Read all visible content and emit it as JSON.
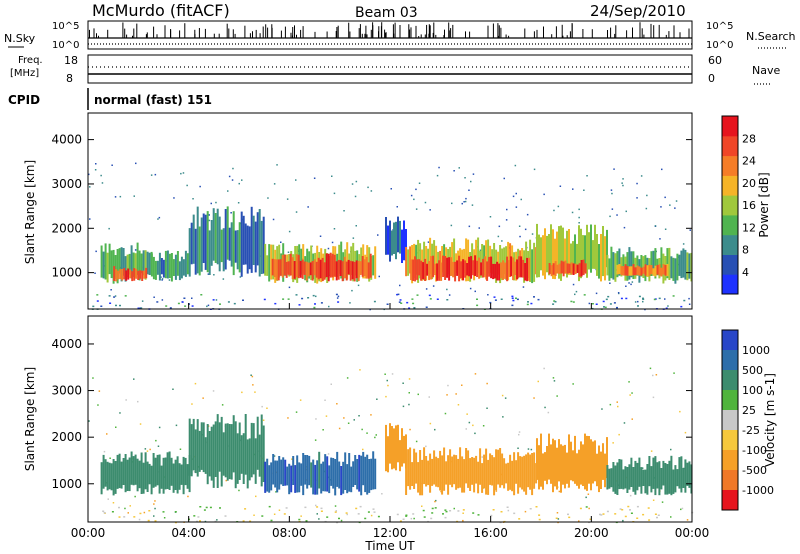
{
  "header": {
    "station": "McMurdo (fitACF)",
    "beam": "Beam 03",
    "date": "24/Sep/2010"
  },
  "aux_panels": {
    "nsky_label": "N.Sky",
    "nsearch_label": "N.Search",
    "nsky_ticks": [
      "10^5",
      "10^0"
    ],
    "nsearch_ticks": [
      "10^5",
      "10^0"
    ],
    "freq_label": "Freq.",
    "freq_unit": "[MHz]",
    "freq_ticks": [
      "18",
      "8"
    ],
    "nave_label": "Nave",
    "nave_ticks": [
      "60",
      "0"
    ],
    "cpid_label": "CPID",
    "cpid_value": "normal (fast) 151"
  },
  "chart_data": [
    {
      "type": "heatmap",
      "panel": "power",
      "ylabel": "Slant Range [km]",
      "ylim": [
        180,
        4600
      ],
      "yticks": [
        "1000",
        "2000",
        "3000",
        "4000"
      ],
      "xlim": [
        0,
        24
      ],
      "colorbar": {
        "label": "Power [dB]",
        "range": [
          0,
          32
        ],
        "ticks": [
          "4",
          "8",
          "12",
          "16",
          "20",
          "24",
          "28"
        ],
        "colors": [
          "#1e32ff",
          "#2850b4",
          "#3c8c8c",
          "#50b450",
          "#a0c83c",
          "#f5b428",
          "#f57d28",
          "#f04628",
          "#e6141e"
        ]
      },
      "bands": [
        {
          "t": [
            0.5,
            2.5
          ],
          "r": [
            750,
            1700
          ],
          "level": 12
        },
        {
          "t": [
            1.0,
            2.3
          ],
          "r": [
            800,
            1150
          ],
          "level": 26
        },
        {
          "t": [
            2.5,
            4.0
          ],
          "r": [
            800,
            1500
          ],
          "level": 10
        },
        {
          "t": [
            4.0,
            7.0
          ],
          "r": [
            900,
            2500
          ],
          "level": 8
        },
        {
          "t": [
            7.0,
            11.4
          ],
          "r": [
            750,
            1700
          ],
          "level": 16
        },
        {
          "t": [
            7.3,
            11.2
          ],
          "r": [
            800,
            1450
          ],
          "level": 26
        },
        {
          "t": [
            11.8,
            12.6
          ],
          "r": [
            1200,
            2300
          ],
          "level": 6
        },
        {
          "t": [
            12.6,
            17.8
          ],
          "r": [
            750,
            1800
          ],
          "level": 18
        },
        {
          "t": [
            12.8,
            17.5
          ],
          "r": [
            800,
            1400
          ],
          "level": 27
        },
        {
          "t": [
            17.8,
            20.6
          ],
          "r": [
            800,
            2100
          ],
          "level": 16
        },
        {
          "t": [
            18.3,
            19.8
          ],
          "r": [
            900,
            1300
          ],
          "level": 25
        },
        {
          "t": [
            20.6,
            24.0
          ],
          "r": [
            750,
            1600
          ],
          "level": 12
        },
        {
          "t": [
            21.0,
            23.0
          ],
          "r": [
            900,
            1200
          ],
          "level": 24
        }
      ]
    },
    {
      "type": "heatmap",
      "panel": "velocity",
      "ylabel": "Slant Range [km]",
      "ylim": [
        180,
        4600
      ],
      "yticks": [
        "1000",
        "2000",
        "3000",
        "4000"
      ],
      "xlabel": "Time UT",
      "xlim": [
        0,
        24
      ],
      "xticks": [
        "00:00",
        "04:00",
        "08:00",
        "12:00",
        "16:00",
        "20:00",
        "00:00"
      ],
      "colorbar": {
        "label": "Velocity [m s-1]",
        "ticks": [
          "1000",
          "500",
          "100",
          "25",
          "-25",
          "-100",
          "-500",
          "-1000"
        ],
        "colors": [
          "#2846c8",
          "#2d6eaa",
          "#3c8c6e",
          "#50b43c",
          "#c8c8c8",
          "#f5c83c",
          "#f5a028",
          "#f07828",
          "#e6141e"
        ]
      },
      "bands": [
        {
          "t": [
            0.5,
            4.0
          ],
          "r": [
            750,
            1700
          ],
          "value": 300
        },
        {
          "t": [
            4.0,
            7.0
          ],
          "r": [
            900,
            2500
          ],
          "value": 350
        },
        {
          "t": [
            7.0,
            11.4
          ],
          "r": [
            750,
            1700
          ],
          "value": 800
        },
        {
          "t": [
            11.8,
            12.6
          ],
          "r": [
            1200,
            2300
          ],
          "value": -150
        },
        {
          "t": [
            12.6,
            17.8
          ],
          "r": [
            750,
            1800
          ],
          "value": -250
        },
        {
          "t": [
            17.8,
            20.6
          ],
          "r": [
            800,
            2100
          ],
          "value": -200
        },
        {
          "t": [
            20.6,
            24.0
          ],
          "r": [
            750,
            1600
          ],
          "value": 200
        }
      ]
    }
  ]
}
